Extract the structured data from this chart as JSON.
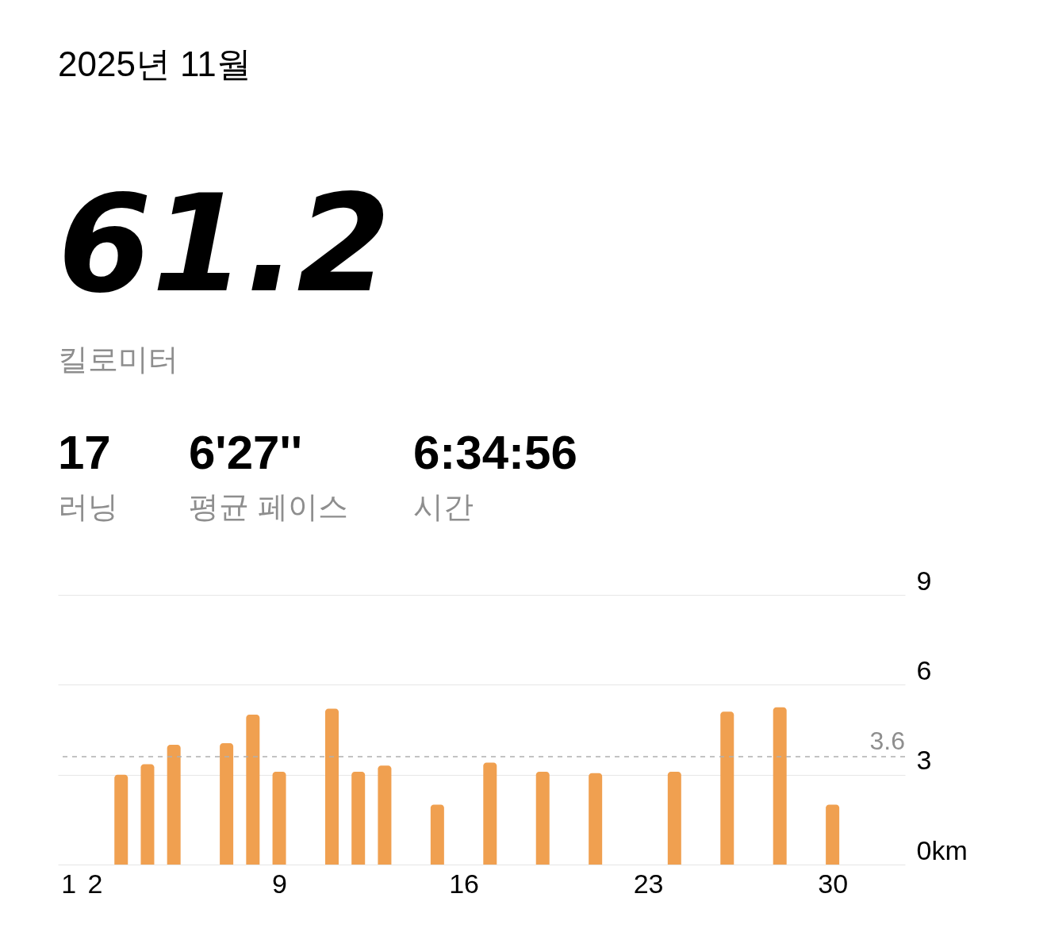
{
  "chart_data": {
    "type": "bar",
    "title": "2025년 11월",
    "annotations": [
      "61.2",
      "킬로미터",
      "17",
      "러닝",
      "6'27''",
      "평균 페이스",
      "6:34:56",
      "시간"
    ],
    "x": [
      3,
      4,
      5,
      7,
      8,
      9,
      11,
      12,
      13,
      15,
      17,
      19,
      21,
      24,
      26,
      28,
      30
    ],
    "series": [
      {
        "color": "#f0a050",
        "values": [
          3.0,
          3.35,
          4.0,
          4.05,
          5.0,
          3.1,
          5.2,
          3.1,
          3.3,
          2.0,
          3.4,
          3.1,
          3.05,
          3.1,
          5.1,
          5.25,
          2.0
        ]
      }
    ],
    "xlim": [
      0.75,
      32.6
    ],
    "xticks": [
      1,
      2,
      9,
      16,
      23,
      30
    ],
    "ylim": [
      0,
      9
    ],
    "yticks": [
      {
        "value": 0,
        "label": "0km"
      },
      3,
      6,
      9
    ],
    "ref_lines": [
      {
        "axis": "y",
        "value": 3.6,
        "label": "3.6",
        "color": "#b0b0b0",
        "line_style": "dashed"
      }
    ],
    "grid": "y"
  }
}
